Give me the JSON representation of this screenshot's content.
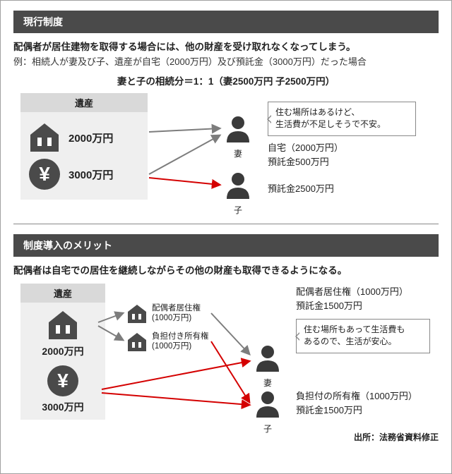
{
  "colors": {
    "section_bg": "#4a4a4a",
    "section_fg": "#ffffff",
    "panel_bg": "#efefef",
    "panel_head_bg": "#d9d9d9",
    "icon_fill": "#4a4a4a",
    "arrow_gray": "#7d7d7d",
    "arrow_red": "#d40000",
    "speech_border": "#888888",
    "text": "#222222",
    "bg": "#ffffff"
  },
  "top": {
    "section_title": "現行制度",
    "lead": "配偶者が居住建物を取得する場合には、他の財産を受け取れなくなってしまう。",
    "example": "例：相続人が妻及び子、遺産が自宅（2000万円）及び預託金（3000万円）だった場合",
    "ratio": "妻と子の相続分＝1：1（妻2500万円 子2500万円）",
    "isan": {
      "title": "遺産",
      "rows": [
        {
          "icon": "house",
          "value": "2000万円"
        },
        {
          "icon": "yen",
          "value": "3000万円"
        }
      ]
    },
    "wife": {
      "label": "妻"
    },
    "child": {
      "label": "子"
    },
    "speech": "住む場所はあるけど、\n生活費が不足しそうで不安。",
    "alloc_wife": "自宅（2000万円）\n預託金500万円",
    "alloc_child": "預託金2500万円",
    "arrows": [
      {
        "from": "house",
        "to": "wife",
        "color": "gray"
      },
      {
        "from": "yen",
        "to": "wife",
        "color": "gray"
      },
      {
        "from": "yen",
        "to": "child",
        "color": "red"
      }
    ]
  },
  "bottom": {
    "section_title": "制度導入のメリット",
    "lead": "配偶者は自宅での居住を継続しながらその他の財産も取得できるようになる。",
    "isan": {
      "title": "遺産",
      "rows": [
        {
          "icon": "house",
          "value": "2000万円"
        },
        {
          "icon": "yen",
          "value": "3000万円"
        }
      ]
    },
    "split": [
      {
        "icon": "house",
        "label": "配偶者居住権\n(1000万円)"
      },
      {
        "icon": "house",
        "label": "負担付き所有権\n(1000万円)"
      }
    ],
    "wife": {
      "label": "妻"
    },
    "child": {
      "label": "子"
    },
    "alloc_wife": "配偶者居住権（1000万円）\n預託金1500万円",
    "speech": "住む場所もあって生活費も\nあるので、生活が安心。",
    "alloc_child": "負担付の所有権（1000万円）\n預託金1500万円",
    "arrows": [
      {
        "from": "house",
        "to": "split1",
        "color": "gray"
      },
      {
        "from": "house",
        "to": "split2",
        "color": "gray"
      },
      {
        "from": "split1",
        "to": "wife",
        "color": "gray"
      },
      {
        "from": "split2",
        "to": "child",
        "color": "red"
      },
      {
        "from": "yen",
        "to": "wife",
        "color": "red"
      },
      {
        "from": "yen",
        "to": "child",
        "color": "red"
      }
    ]
  },
  "source": "出所：法務省資料修正",
  "svg_defs": {
    "arrow_width": 2
  }
}
